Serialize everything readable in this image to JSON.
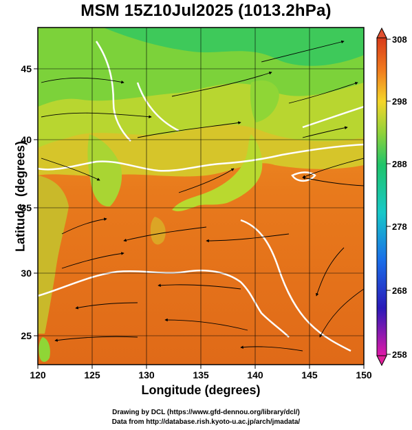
{
  "title": "MSM 15Z10Jul2025 (1013.2hPa)",
  "map": {
    "xlabel": "Longitude (degrees)",
    "ylabel": "Latitude  (degrees)",
    "lon_range": [
      120,
      150
    ],
    "lat_range": [
      22.4,
      48
    ],
    "lon_ticks": [
      "120",
      "125",
      "130",
      "135",
      "140",
      "145",
      "150"
    ],
    "lat_ticks": [
      "25",
      "30",
      "35",
      "40",
      "45"
    ],
    "field": "temperature (K) shaded with wind streamlines and white isotherms"
  },
  "colorbar": {
    "min": 258,
    "max": 308,
    "labels": [
      "308",
      "298",
      "288",
      "278",
      "268",
      "258"
    ]
  },
  "credits": {
    "line1": "Drawing by DCL (https://www.gfd-dennou.org/library/dcl/)",
    "line2": "Data from http://database.rish.kyoto-u.ac.jp/arch/jmadata/"
  }
}
